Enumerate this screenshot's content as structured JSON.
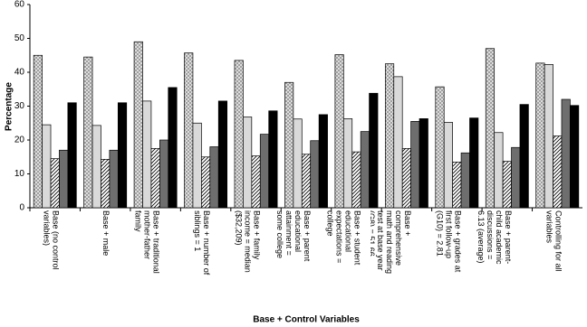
{
  "chart_data": {
    "type": "bar",
    "y_label": "Percentage",
    "x_label": "Base + Control Variables",
    "categories": [
      "Base (no control variables)",
      "Base + male",
      "Base + traditional mother-father family",
      "Base + number of siblings = 1",
      "Base + family income = median ($32,209)",
      "Base + parent educational attainment = some college",
      "Base + student educational expectations = college",
      "Base + comprehensive math and reading test at base year (G8) = 51.66 (average)",
      "Base + grades at first follow-up (G10) = 2.81",
      "Base + parent-child academic discussions = 6.13 (average)",
      "Controlling for all variables"
    ],
    "series": [
      {
        "color": "#d9d9d9",
        "pattern": "crosshatch",
        "values": [
          45,
          44.5,
          49,
          45.7,
          43.5,
          37,
          45.2,
          42.5,
          35.7,
          47,
          42.7
        ]
      },
      {
        "color": "#d9d9d9",
        "pattern": "solid",
        "values": [
          24.5,
          24.3,
          31.5,
          25,
          26.8,
          26.2,
          26.3,
          38.7,
          25.2,
          22.2,
          42.3
        ]
      },
      {
        "color": "#ffffff",
        "pattern": "diagonal",
        "values": [
          14.5,
          14.3,
          17.5,
          15,
          15.3,
          15.8,
          16.5,
          17.5,
          13.5,
          13.7,
          21.2
        ]
      },
      {
        "color": "#6e6e6e",
        "pattern": "solid",
        "values": [
          17,
          17,
          20,
          18,
          21.7,
          19.8,
          22.5,
          25.5,
          16.2,
          17.8,
          32
        ]
      },
      {
        "color": "#000000",
        "pattern": "solid",
        "values": [
          31,
          31,
          35.5,
          31.5,
          28.6,
          27.5,
          33.8,
          26.3,
          26.5,
          30.5,
          30.2
        ]
      }
    ],
    "ylim": [
      0,
      60
    ],
    "yticks": [
      0,
      10,
      20,
      30,
      40,
      50,
      60
    ],
    "grid": false
  }
}
